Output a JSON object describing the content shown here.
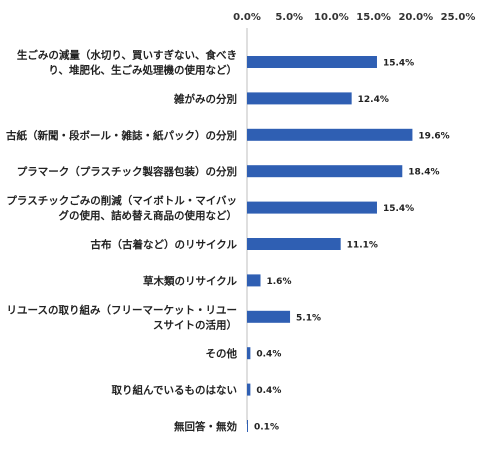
{
  "chart_data": {
    "type": "bar",
    "orientation": "horizontal",
    "x_ticks": [
      "0.0%",
      "5.0%",
      "10.0%",
      "15.0%",
      "20.0%",
      "25.0%"
    ],
    "xlim": [
      0,
      25
    ],
    "bar_color": "#2f5fb3",
    "categories": [
      [
        "生ごみの減量（水切り、買いすぎない、食べき",
        "り、堆肥化、生ごみ処理機の使用など）"
      ],
      [
        "雑がみの分別"
      ],
      [
        "古紙（新聞・段ボール・雑誌・紙パック）の分別"
      ],
      [
        "プラマーク（プラスチック製容器包装）の分別"
      ],
      [
        "プラスチックごみの削減（マイボトル・マイバッ",
        "グの使用、詰め替え商品の使用など）"
      ],
      [
        "古布（古着など）のリサイクル"
      ],
      [
        "草木類のリサイクル"
      ],
      [
        "リユースの取り組み（フリーマーケット・リユー",
        "スサイトの活用）"
      ],
      [
        "その他"
      ],
      [
        "取り組んでいるものはない"
      ],
      [
        "無回答・無効"
      ]
    ],
    "values": [
      15.4,
      12.4,
      19.6,
      18.4,
      15.4,
      11.1,
      1.6,
      5.1,
      0.4,
      0.4,
      0.1
    ],
    "value_labels": [
      "15.4%",
      "12.4%",
      "19.6%",
      "18.4%",
      "15.4%",
      "11.1%",
      "1.6%",
      "5.1%",
      "0.4%",
      "0.4%",
      "0.1%"
    ],
    "grid": false
  }
}
